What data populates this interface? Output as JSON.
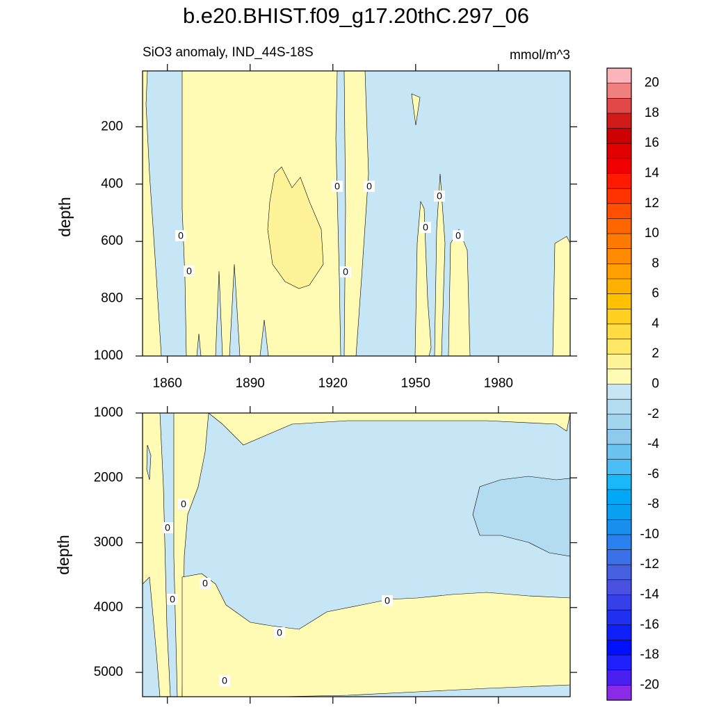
{
  "chart_data": [
    {
      "type": "contour",
      "title": "b.e20.BHIST.f09_g17.20thC.297_06",
      "subtitle": "SiO3 anomaly, IND_44S-18S",
      "units": "mmol/m^3",
      "ylabel": "depth",
      "xlim": [
        1851,
        2006
      ],
      "xticks": [
        1860,
        1890,
        1920,
        1950,
        1980
      ],
      "ylim": [
        5,
        1000
      ],
      "yticks": [
        200,
        400,
        600,
        800,
        1000
      ],
      "contour_labels": [
        "0",
        "0",
        "0",
        "0",
        "0",
        "0",
        "0",
        "0"
      ]
    },
    {
      "type": "contour",
      "ylabel": "depth",
      "xlim": [
        1851,
        2006
      ],
      "xticks": [
        1860,
        1890,
        1920,
        1950,
        1980
      ],
      "ylim": [
        1000,
        5375
      ],
      "yticks": [
        1000,
        2000,
        3000,
        4000,
        5000
      ],
      "contour_labels": [
        "0",
        "0",
        "0",
        "0",
        "0",
        "0",
        "0"
      ]
    }
  ],
  "colorbar": {
    "levels": [
      -20,
      -19,
      -18,
      -17,
      -16,
      -15,
      -14,
      -13,
      -12,
      -11,
      -10,
      -9,
      -8,
      -7,
      -6,
      -5,
      -4,
      -3,
      -2,
      -1,
      0,
      1,
      2,
      3,
      4,
      5,
      6,
      7,
      8,
      9,
      10,
      11,
      12,
      13,
      14,
      15,
      16,
      17,
      18,
      19,
      20
    ],
    "colors": [
      "#8a2be8",
      "#4a20f0",
      "#2020ff",
      "#0010ff",
      "#1020f8",
      "#2030f0",
      "#3540e8",
      "#4a50e0",
      "#4560e0",
      "#3a70e8",
      "#2a80ee",
      "#1890f0",
      "#0aa0f0",
      "#00a8f5",
      "#1ab8f8",
      "#4dbdf5",
      "#6cc3f0",
      "#8fcaed",
      "#a3d5ef",
      "#b4dcf0",
      "#c6e5f5",
      "#fffbb4",
      "#fff39a",
      "#ffe866",
      "#ffdd40",
      "#ffd020",
      "#ffc000",
      "#ffb000",
      "#ffa000",
      "#ff8c00",
      "#ff7a00",
      "#ff6600",
      "#ff5000",
      "#ff3300",
      "#ff1a00",
      "#f00000",
      "#e00000",
      "#cc0000",
      "#d11a1a",
      "#e34848",
      "#f08080",
      "#fbb4b9"
    ],
    "ticks": [
      -20,
      -18,
      -16,
      -14,
      -12,
      -10,
      -8,
      -6,
      -4,
      -2,
      0,
      2,
      4,
      6,
      8,
      10,
      12,
      14,
      16,
      18,
      20
    ]
  }
}
